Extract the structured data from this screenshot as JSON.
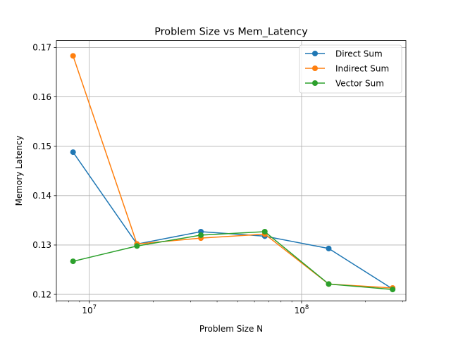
{
  "chart_data": {
    "type": "line",
    "title": "Problem Size vs Mem_Latency",
    "xlabel": "Problem Size N",
    "ylabel": "Memory Latency",
    "xscale": "log",
    "xlim": [
      7000000,
      310000000
    ],
    "ylim": [
      0.1187,
      0.1714
    ],
    "grid": true,
    "legend_position": "top-right",
    "x": [
      8388608,
      16777216,
      33554432,
      67108864,
      134217728,
      268435456
    ],
    "x_ticks": [
      {
        "value": 10000000,
        "base": "10",
        "exp": "7"
      },
      {
        "value": 100000000,
        "base": "10",
        "exp": "8"
      }
    ],
    "y_ticks": [
      {
        "value": 0.12,
        "label": "0.12"
      },
      {
        "value": 0.13,
        "label": "0.13"
      },
      {
        "value": 0.14,
        "label": "0.14"
      },
      {
        "value": 0.15,
        "label": "0.15"
      },
      {
        "value": 0.16,
        "label": "0.16"
      },
      {
        "value": 0.17,
        "label": "0.17"
      }
    ],
    "series": [
      {
        "name": "Direct Sum",
        "color": "#1f77b4",
        "values": [
          0.1488,
          0.1302,
          0.1327,
          0.1318,
          0.1293,
          0.1211
        ]
      },
      {
        "name": "Indirect Sum",
        "color": "#ff7f0e",
        "values": [
          0.1683,
          0.1302,
          0.1314,
          0.1322,
          0.1221,
          0.1213
        ]
      },
      {
        "name": "Vector Sum",
        "color": "#2ca02c",
        "values": [
          0.1267,
          0.1298,
          0.132,
          0.1327,
          0.1221,
          0.121
        ]
      }
    ]
  }
}
